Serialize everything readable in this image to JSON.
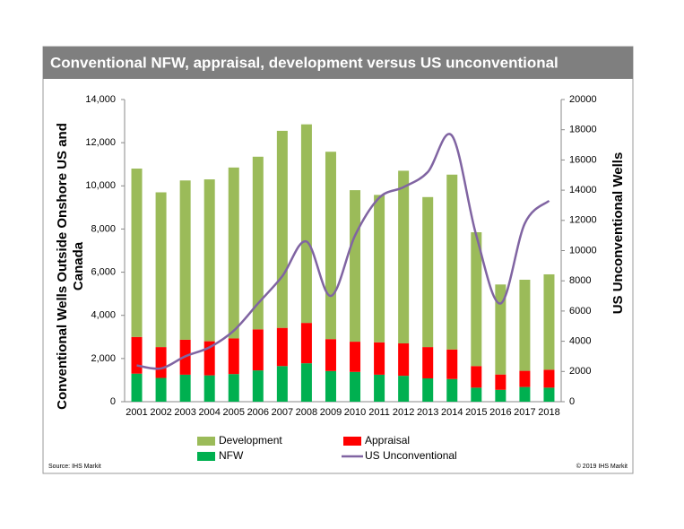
{
  "chart_data": {
    "type": "bar",
    "stacked": true,
    "title": "Conventional NFW, appraisal, development versus US unconventional",
    "y_label": [
      "Conventional Wells Outside Onshore US and",
      "Canada"
    ],
    "y2_label": "US Unconventional Wells",
    "source": "Source: IHS Markit",
    "copyright": "© 2019 IHS Markit",
    "categories": [
      "2001",
      "2002",
      "2003",
      "2004",
      "2005",
      "2006",
      "2007",
      "2008",
      "2009",
      "2010",
      "2011",
      "2012",
      "2013",
      "2014",
      "2015",
      "2016",
      "2017",
      "2018"
    ],
    "series": [
      {
        "name": "NFW",
        "type": "bar",
        "color": "#00b050",
        "values": [
          1300,
          1100,
          1250,
          1220,
          1280,
          1450,
          1650,
          1780,
          1420,
          1380,
          1250,
          1200,
          1080,
          1050,
          650,
          550,
          680,
          650
        ]
      },
      {
        "name": "Appraisal",
        "type": "bar",
        "color": "#ff0000",
        "values": [
          1700,
          1430,
          1620,
          1580,
          1650,
          1900,
          1770,
          1870,
          1480,
          1400,
          1500,
          1500,
          1450,
          1370,
          1000,
          710,
          750,
          830
        ]
      },
      {
        "name": "Development",
        "type": "bar",
        "color": "#9bbb59",
        "values": [
          7800,
          7170,
          7380,
          7500,
          7920,
          8000,
          9130,
          9200,
          8680,
          7020,
          6830,
          8000,
          6950,
          8100,
          6200,
          4170,
          4220,
          4420
        ]
      },
      {
        "name": "US Unconventional",
        "type": "line",
        "axis": "y2",
        "color": "#8064a2",
        "values": [
          2400,
          2200,
          3000,
          3600,
          4700,
          6500,
          8300,
          10600,
          7000,
          11000,
          13500,
          14200,
          15200,
          17600,
          11000,
          6500,
          11800,
          13300
        ]
      }
    ],
    "ylim": [
      0,
      14000
    ],
    "yticks": [
      0,
      {
        "value": 2000,
        "label": "2,000"
      },
      {
        "value": 4000,
        "label": "4,000"
      },
      {
        "value": 6000,
        "label": "6,000"
      },
      {
        "value": 8000,
        "label": "8,000"
      },
      {
        "value": 10000,
        "label": "10,000"
      },
      {
        "value": 12000,
        "label": "12,000"
      },
      {
        "value": 14000,
        "label": "14,000"
      }
    ],
    "y2lim": [
      0,
      20000
    ],
    "y2ticks": [
      0,
      2000,
      4000,
      6000,
      8000,
      10000,
      12000,
      14000,
      16000,
      18000,
      20000
    ],
    "grid": false
  }
}
